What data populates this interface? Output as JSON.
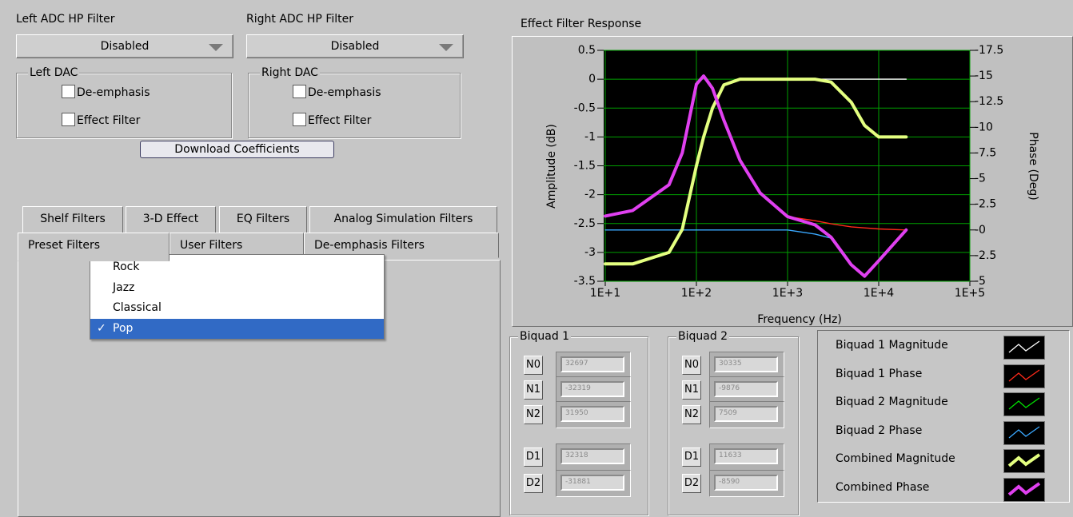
{
  "left_adc": {
    "label": "Left ADC HP Filter",
    "value": "Disabled"
  },
  "right_adc": {
    "label": "Right ADC HP Filter",
    "value": "Disabled"
  },
  "left_dac": {
    "title": "Left DAC",
    "options": [
      "De-emphasis",
      "Effect Filter"
    ]
  },
  "right_dac": {
    "title": "Right DAC",
    "options": [
      "De-emphasis",
      "Effect Filter"
    ]
  },
  "download_button": "Download Coefficients",
  "tabs_row1": [
    "Shelf Filters",
    "3-D Effect",
    "EQ Filters",
    "Analog Simulation Filters"
  ],
  "tabs_row2": [
    "Preset Filters",
    "User Filters",
    "De-emphasis Filters"
  ],
  "menu": {
    "items": [
      "Rock",
      "Jazz",
      "Classical",
      "Pop"
    ],
    "check": "✓"
  },
  "chart_data": {
    "type": "line",
    "title": "Effect Filter Response",
    "xlabel": "Frequency (Hz)",
    "ylabel": "Amplitude (dB)",
    "y2label": "Phase (Deg)",
    "xscale": "log",
    "grid": true,
    "x": [
      10,
      20,
      50,
      70,
      100,
      120,
      150,
      200,
      300,
      500,
      1000,
      2000,
      3000,
      5000,
      7000,
      10000,
      20000
    ],
    "xlim": [
      10,
      100000
    ],
    "xticks": [
      {
        "value": 10,
        "label": "1E+1"
      },
      {
        "value": 100,
        "label": "1E+2"
      },
      {
        "value": 1000,
        "label": "1E+3"
      },
      {
        "value": 10000,
        "label": "1E+4"
      },
      {
        "value": 100000,
        "label": "1E+5"
      }
    ],
    "ylim": [
      -3.5,
      0.5
    ],
    "yticks": [
      -3.5,
      -3,
      -2.5,
      -2,
      -1.5,
      -1,
      -0.5,
      0,
      0.5
    ],
    "y2lim": [
      5,
      -17.5
    ],
    "y2ticks": [
      -17.5,
      -15,
      -12.5,
      -10,
      -7.5,
      -5,
      -2.5,
      {
        "value": 0,
        "label": "-0"
      },
      {
        "value": 2.5,
        "label": "-2.5"
      },
      {
        "value": 5,
        "label": "-5"
      }
    ],
    "series": [
      {
        "name": "Biquad 1 Magnitude",
        "color": "#ffffff",
        "values": [
          null,
          null,
          null,
          null,
          null,
          null,
          null,
          null,
          0,
          0,
          0,
          0,
          0,
          0,
          0,
          0,
          0
        ]
      },
      {
        "name": "Biquad 1 Phase",
        "color": "#ff2a1a",
        "axis": "y2",
        "values": [
          -1.35,
          -1.9,
          -4.4,
          -7.5,
          -14.2,
          -15,
          -13.8,
          -10.7,
          -6.8,
          -3.6,
          -1.3,
          -0.9,
          -0.6,
          -0.3,
          -0.2,
          -0.1,
          0
        ]
      },
      {
        "name": "Biquad 2 Magnitude",
        "color": "#00e000",
        "values": [
          null,
          null,
          null,
          null,
          null,
          null,
          null,
          null,
          0,
          0,
          0,
          0,
          -0.05,
          -0.4,
          -0.8,
          -1,
          -1
        ]
      },
      {
        "name": "Biquad 2 Phase",
        "color": "#3aa8ff",
        "axis": "y2",
        "values": [
          0,
          0,
          0,
          0,
          0,
          0,
          0,
          0,
          0,
          0,
          0,
          0.4,
          0.8,
          3.4,
          4.5,
          3,
          0
        ]
      },
      {
        "name": "Combined Magnitude",
        "color": "#e4ff80",
        "values": [
          -3.2,
          -3.2,
          -3,
          -2.6,
          -1.5,
          -1,
          -0.5,
          -0.1,
          0,
          0,
          0,
          0,
          -0.05,
          -0.4,
          -0.8,
          -1,
          -1
        ]
      },
      {
        "name": "Combined Phase",
        "color": "#e040f0",
        "axis": "y2",
        "values": [
          -1.35,
          -1.9,
          -4.4,
          -7.5,
          -14.2,
          -15,
          -13.8,
          -10.7,
          -6.8,
          -3.6,
          -1.3,
          -0.5,
          0.7,
          3.4,
          4.5,
          3,
          0
        ]
      }
    ]
  },
  "biquads": [
    {
      "title": "Biquad 1",
      "coefficients": [
        {
          "name": "N0",
          "value": 32697
        },
        {
          "name": "N1",
          "value": -32319
        },
        {
          "name": "N2",
          "value": 31950
        },
        {
          "name": "D1",
          "value": 32318
        },
        {
          "name": "D2",
          "value": -31881
        }
      ]
    },
    {
      "title": "Biquad 2",
      "coefficients": [
        {
          "name": "N0",
          "value": 30335
        },
        {
          "name": "N1",
          "value": -9876
        },
        {
          "name": "N2",
          "value": 7509
        },
        {
          "name": "D1",
          "value": 11633
        },
        {
          "name": "D2",
          "value": -8590
        }
      ]
    }
  ]
}
